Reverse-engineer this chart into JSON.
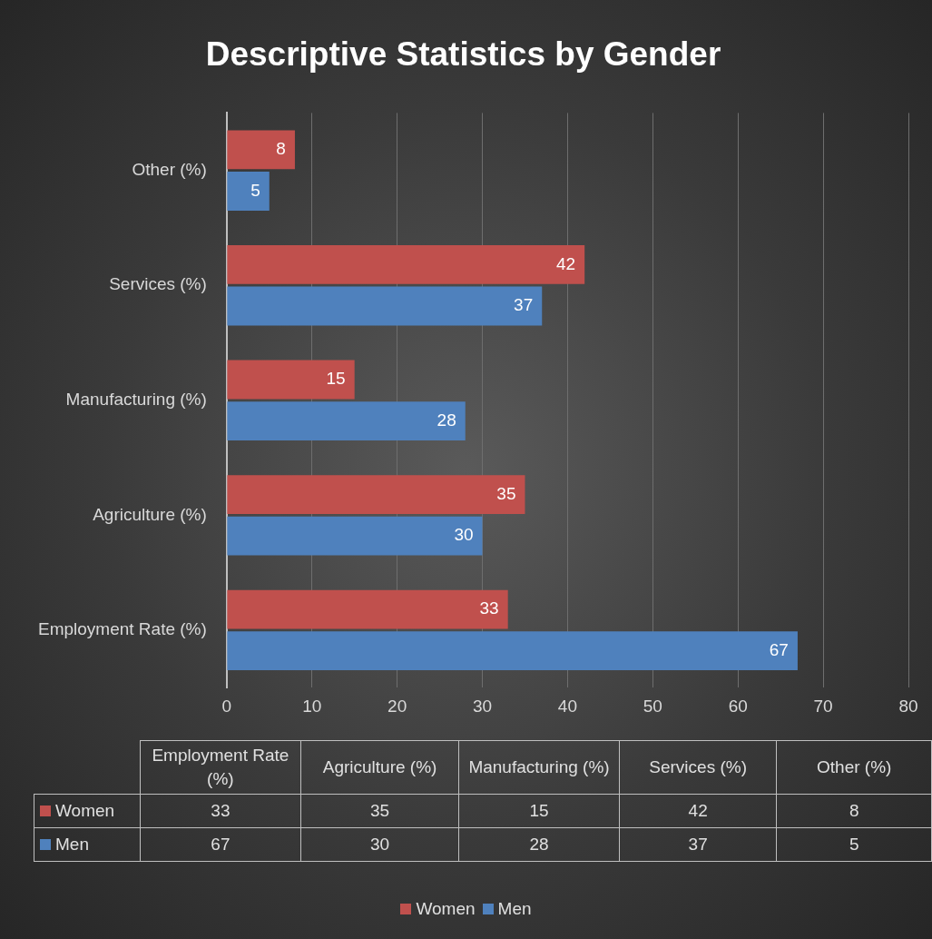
{
  "chart_data": {
    "type": "bar",
    "orientation": "horizontal",
    "title": "Descriptive Statistics by Gender",
    "categories": [
      "Other (%)",
      "Services (%)",
      "Manufacturing (%)",
      "Agriculture (%)",
      "Employment Rate (%)"
    ],
    "series": [
      {
        "name": "Women",
        "color": "#c0504d",
        "values": [
          8,
          42,
          15,
          35,
          33
        ],
        "value_labels": [
          "8",
          "42",
          "15",
          "35",
          "33"
        ]
      },
      {
        "name": "Men",
        "color": "#4f81bd",
        "values": [
          5,
          37,
          28,
          30,
          67
        ],
        "value_labels": [
          "5",
          "37",
          "28",
          "30",
          "67"
        ]
      }
    ],
    "xlim": [
      0,
      80
    ],
    "xticks": [
      0,
      10,
      20,
      30,
      40,
      50,
      60,
      70,
      80
    ],
    "annotations": [
      "33",
      "35",
      "15",
      "42",
      "8",
      "67",
      "30",
      "28",
      "37",
      "5"
    ],
    "grid": "x",
    "legend": "bottom",
    "data_labels": true
  }
}
